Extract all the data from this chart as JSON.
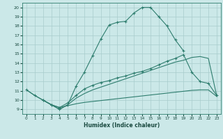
{
  "xlabel": "Humidex (Indice chaleur)",
  "bg_color": "#cbe8e8",
  "grid_color": "#a8cccc",
  "line_color": "#2e7d6e",
  "xlim": [
    -0.5,
    23.5
  ],
  "ylim": [
    8.5,
    20.5
  ],
  "xticks": [
    0,
    1,
    2,
    3,
    4,
    5,
    6,
    7,
    8,
    9,
    10,
    11,
    12,
    13,
    14,
    15,
    16,
    17,
    18,
    19,
    20,
    21,
    22,
    23
  ],
  "yticks": [
    9,
    10,
    11,
    12,
    13,
    14,
    15,
    16,
    17,
    18,
    19,
    20
  ],
  "line1_x": [
    0,
    1,
    2,
    3,
    4,
    5,
    6,
    7,
    8,
    9,
    10,
    11,
    12,
    13,
    14,
    15,
    16,
    17,
    18,
    19
  ],
  "line1_y": [
    11.1,
    10.5,
    10.0,
    9.5,
    9.0,
    9.5,
    11.5,
    13.0,
    14.8,
    16.6,
    18.1,
    18.4,
    18.5,
    19.4,
    20.0,
    20.0,
    19.0,
    18.0,
    16.5,
    15.3
  ],
  "line2_x": [
    2,
    3,
    4,
    5,
    6,
    7,
    8,
    9,
    10,
    11,
    12,
    13,
    14,
    15,
    16,
    17,
    18,
    19,
    20,
    21,
    22,
    23
  ],
  "line2_y": [
    10.0,
    9.5,
    9.2,
    9.7,
    10.5,
    11.2,
    11.6,
    11.9,
    12.1,
    12.4,
    12.6,
    12.9,
    13.1,
    13.4,
    13.8,
    14.2,
    14.5,
    14.9,
    13.0,
    12.0,
    11.8,
    10.5
  ],
  "line3_x": [
    2,
    3,
    4,
    5,
    6,
    7,
    8,
    9,
    10,
    11,
    12,
    13,
    14,
    15,
    16,
    17,
    18,
    19,
    20,
    21,
    22,
    23
  ],
  "line3_y": [
    10.0,
    9.5,
    9.2,
    9.4,
    9.6,
    9.75,
    9.85,
    9.95,
    10.05,
    10.15,
    10.25,
    10.35,
    10.45,
    10.55,
    10.65,
    10.75,
    10.85,
    10.95,
    11.05,
    11.1,
    11.1,
    10.4
  ],
  "line4_x": [
    0,
    1,
    2,
    3,
    4,
    5,
    6,
    7,
    8,
    9,
    10,
    11,
    12,
    13,
    14,
    15,
    16,
    17,
    18,
    19,
    20,
    21,
    22,
    23
  ],
  "line4_y": [
    11.1,
    10.5,
    10.0,
    9.5,
    9.0,
    9.5,
    10.2,
    10.7,
    11.1,
    11.4,
    11.7,
    12.0,
    12.3,
    12.6,
    12.9,
    13.2,
    13.5,
    13.8,
    14.1,
    14.3,
    14.6,
    14.7,
    14.5,
    10.5
  ]
}
